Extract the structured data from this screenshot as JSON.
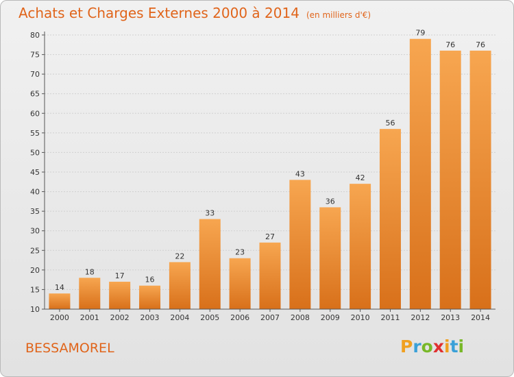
{
  "header": {
    "title": "Achats et Charges Externes 2000 à 2014",
    "unit": "(en milliers d'€)"
  },
  "footer": {
    "commune": "BESSAMOREL",
    "logo_letters": [
      "P",
      "r",
      "o",
      "x",
      "i",
      "t",
      "i"
    ],
    "logo_colors": [
      "#f0a020",
      "#3aa0d8",
      "#78b828",
      "#e03030",
      "#f0a020",
      "#3aa0d8",
      "#78b828"
    ]
  },
  "colors": {
    "bar": "#f08a2a",
    "bar_light": "#f6a24c",
    "bar_dark": "#d66e16",
    "title": "#e0641a"
  },
  "chart_data": {
    "type": "bar",
    "title": "Achats et Charges Externes 2000 à 2014",
    "subtitle": "(en milliers d'€)",
    "categories": [
      "2000",
      "2001",
      "2002",
      "2003",
      "2004",
      "2005",
      "2006",
      "2007",
      "2008",
      "2009",
      "2010",
      "2011",
      "2012",
      "2013",
      "2014"
    ],
    "values": [
      14,
      18,
      17,
      16,
      22,
      33,
      23,
      27,
      43,
      36,
      42,
      56,
      79,
      76,
      76
    ],
    "ylim": [
      10,
      80
    ],
    "yticks": [
      10,
      15,
      20,
      25,
      30,
      35,
      40,
      45,
      50,
      55,
      60,
      65,
      70,
      75,
      80
    ],
    "grid": true,
    "legend": "none"
  }
}
